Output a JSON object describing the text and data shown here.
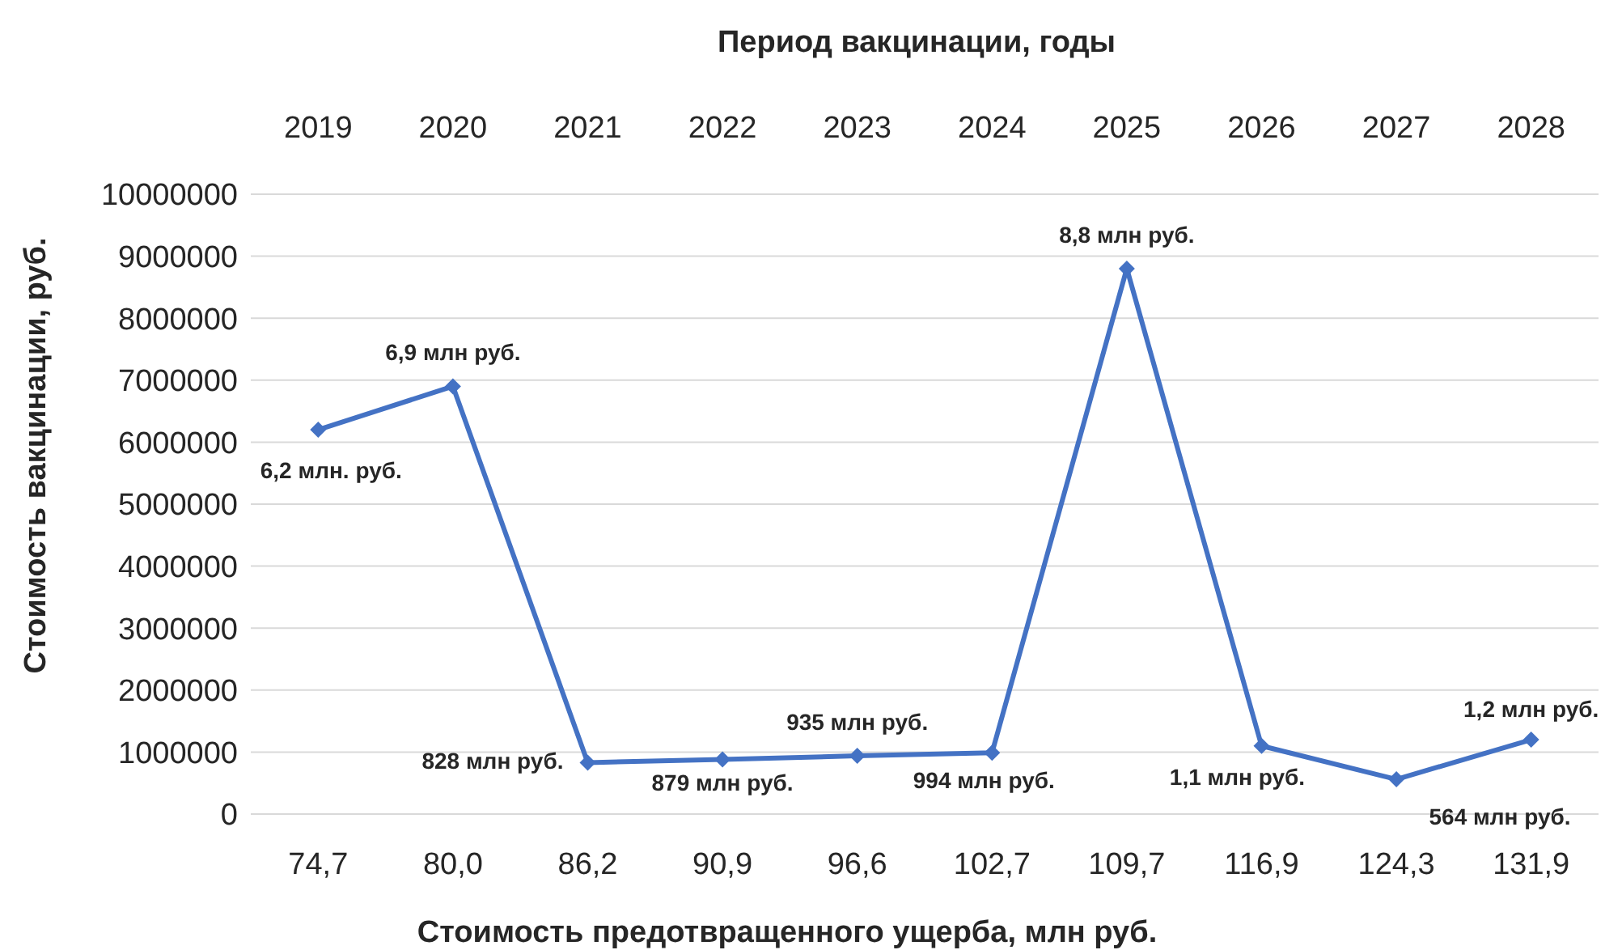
{
  "chart_data": {
    "type": "line",
    "x2label": "Период вакцинации, годы",
    "xlabel": "Стоимость предотвращенного ущерба, млн руб.",
    "ylabel": "Стоимость вакцинации, руб.",
    "categories": [
      "74,7",
      "80,0",
      "86,2",
      "90,9",
      "96,6",
      "102,7",
      "109,7",
      "116,9",
      "124,3",
      "131,9"
    ],
    "x2lim": [
      2018.5,
      2028.5
    ],
    "x2ticks": [
      2019,
      2020,
      2021,
      2022,
      2023,
      2024,
      2025,
      2026,
      2027,
      2028
    ],
    "series": [
      {
        "color": "#4472c4",
        "values": [
          6200000,
          6900000,
          830000,
          880000,
          940000,
          990000,
          8800000,
          1100000,
          560000,
          1200000
        ]
      }
    ],
    "annotations": [
      {
        "text": "6,2 млн. руб.",
        "x": "74,7",
        "y": 6200000
      },
      {
        "text": "6,9 млн руб.",
        "x": "80,0",
        "y": 6900000
      },
      {
        "text": "828 млн руб.",
        "x": "86,2",
        "y": 830000
      },
      {
        "text": "879 млн руб.",
        "x": "90,9",
        "y": 880000
      },
      {
        "text": "935 млн руб.",
        "x": "96,6",
        "y": 940000
      },
      {
        "text": "994 млн руб.",
        "x": "102,7",
        "y": 990000
      },
      {
        "text": "8,8 млн руб.",
        "x": "109,7",
        "y": 8800000
      },
      {
        "text": "1,1 млн руб.",
        "x": "116,9",
        "y": 1100000
      },
      {
        "text": "564 млн руб.",
        "x": "124,3",
        "y": 560000
      },
      {
        "text": "1,2 млн руб.",
        "x": "131,9",
        "y": 1200000
      }
    ],
    "ylim": [
      0,
      10000000
    ],
    "yticks": [
      0,
      1000000,
      2000000,
      3000000,
      4000000,
      5000000,
      6000000,
      7000000,
      8000000,
      9000000,
      10000000
    ],
    "grid": "y",
    "marker": "diamond",
    "line_style": "solid"
  }
}
